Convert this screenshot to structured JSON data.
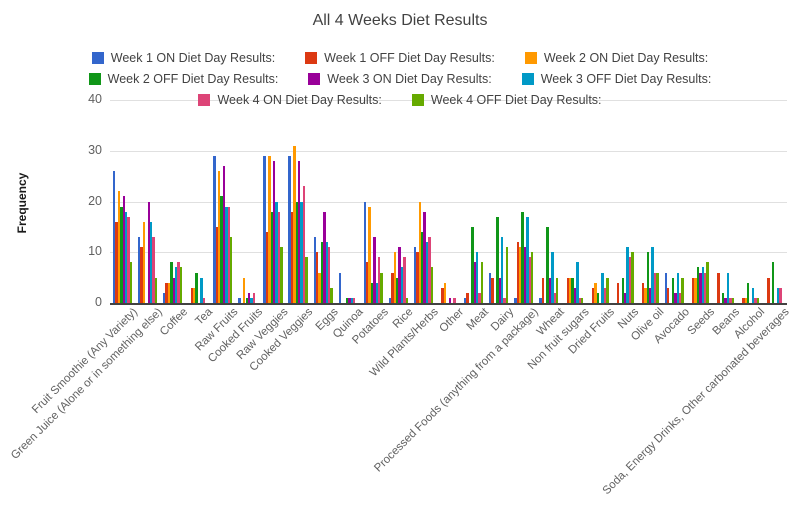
{
  "title": "All 4 Weeks Diet Results",
  "chart_data": {
    "type": "bar",
    "title": "All 4 Weeks Diet Results",
    "xlabel": "",
    "ylabel": "Frequency",
    "ylim": [
      0,
      40
    ],
    "yticks": [
      0,
      10,
      20,
      30,
      40
    ],
    "grid": true,
    "legend_position": "top",
    "colors": [
      "#3366cc",
      "#dc3912",
      "#ff9900",
      "#109618",
      "#990099",
      "#0099c6",
      "#dd4477",
      "#66aa00"
    ],
    "categories": [
      "Fruit Smoothie (Any Variety)",
      "Green Juice (Alone or in something else)",
      "Coffee",
      "Tea",
      "Raw Fruits",
      "Cooked Fruits",
      "Raw Veggies",
      "Cooked Veggies",
      "Eggs",
      "Quinoa",
      "Potatoes",
      "Rice",
      "Wild Plants/Herbs",
      "Other",
      "Meat",
      "Dairy",
      "Processed Foods (anything from a package)",
      "Wheat",
      "Non fruit sugars",
      "Dried Fruits",
      "Nuts",
      "Olive oil",
      "Avocado",
      "Seeds",
      "Beans",
      "Alcohol",
      "Soda, Energy Drinks, Other carbonated beverages"
    ],
    "series": [
      {
        "name": "Week 1 ON Diet Day Results:",
        "values": [
          26,
          13,
          2,
          0,
          29,
          1,
          29,
          29,
          13,
          6,
          20,
          1,
          11,
          0,
          1,
          6,
          1,
          1,
          0,
          0,
          0,
          0,
          6,
          0,
          0,
          0,
          0
        ]
      },
      {
        "name": "Week 1 OFF Diet Day Results:",
        "values": [
          16,
          11,
          4,
          3,
          15,
          0,
          14,
          18,
          10,
          0,
          8,
          6,
          10,
          3,
          2,
          5,
          12,
          5,
          5,
          3,
          4,
          4,
          3,
          5,
          6,
          1,
          5
        ]
      },
      {
        "name": "Week 2 ON Diet Day Results:",
        "values": [
          22,
          16,
          4,
          3,
          26,
          5,
          29,
          31,
          6,
          0,
          19,
          10,
          20,
          4,
          0,
          0,
          11,
          0,
          5,
          4,
          0,
          3,
          0,
          5,
          0,
          1,
          0
        ]
      },
      {
        "name": "Week 2 OFF Diet Day Results:",
        "values": [
          19,
          0,
          8,
          6,
          21,
          1,
          18,
          20,
          12,
          1,
          4,
          5,
          14,
          0,
          15,
          17,
          18,
          15,
          5,
          2,
          5,
          10,
          5,
          7,
          2,
          4,
          8
        ]
      },
      {
        "name": "Week 3 ON Diet Day Results:",
        "values": [
          21,
          20,
          5,
          0,
          27,
          2,
          28,
          28,
          18,
          1,
          13,
          11,
          18,
          1,
          8,
          5,
          11,
          5,
          3,
          0,
          2,
          3,
          2,
          6,
          1,
          0,
          0
        ]
      },
      {
        "name": "Week 3 OFF Diet Day Results:",
        "values": [
          18,
          16,
          7,
          5,
          19,
          1,
          20,
          20,
          12,
          1,
          4,
          7,
          12,
          0,
          10,
          13,
          17,
          10,
          8,
          6,
          11,
          11,
          6,
          7,
          6,
          3,
          3
        ]
      },
      {
        "name": "Week 4 ON Diet Day Results:",
        "values": [
          17,
          13,
          8,
          1,
          19,
          2,
          18,
          23,
          11,
          1,
          9,
          9,
          13,
          1,
          2,
          1,
          9,
          2,
          1,
          3,
          9,
          6,
          2,
          6,
          1,
          1,
          3
        ]
      },
      {
        "name": "Week 4 OFF Diet Day Results:",
        "values": [
          8,
          5,
          7,
          0,
          13,
          0,
          11,
          9,
          3,
          0,
          6,
          1,
          7,
          0,
          8,
          11,
          10,
          5,
          1,
          5,
          10,
          6,
          5,
          8,
          1,
          1,
          0
        ]
      }
    ]
  }
}
